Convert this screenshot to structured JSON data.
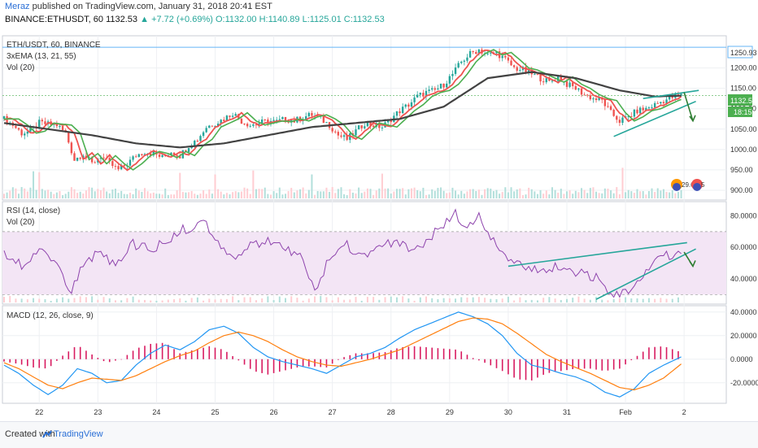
{
  "header": {
    "author": "Meraz",
    "published": "published on TradingView.com, January 31, 2018 20:41 EST",
    "symbol_line": "BINANCE:ETHUSDT, 60",
    "last": "1132.53",
    "change": "+7.72 (+0.69%)",
    "ohlc": "O:1132.00 H:1140.89 L:1125.01 C:1132.53"
  },
  "legends": {
    "symbol": "ETH/USDT, 60, BINANCE",
    "ema": "3xEMA (13, 21, 55)",
    "vol": "Vol (20)",
    "rsi": "RSI (14, close)",
    "rsi_vol": "Vol (20)",
    "macd": "MACD (12, 26, close, 9)"
  },
  "price_tags": {
    "resistance": "1250.93",
    "last": "1132.53",
    "countdown": "18:15"
  },
  "event_badges": [
    "29.6",
    "5"
  ],
  "footer": {
    "created_with": "Created with",
    "brand": "TradingView"
  },
  "colors": {
    "up": "#26a69a",
    "down": "#ef5350",
    "ema13": "#ef5350",
    "ema21": "#4caf50",
    "ema55": "#424242",
    "trend": "#26a69a",
    "arrow": "#2e7d32",
    "resistance": "#64b5f6",
    "rsi_line": "#8e44ad",
    "rsi_band": "#f3e5f5",
    "macd_line": "#2196f3",
    "signal_line": "#ff7f0e",
    "hist": "#d81b60"
  },
  "chart_data": [
    {
      "type": "candlestick",
      "name": "ETH/USDT 60",
      "x_labels": [
        "22",
        "23",
        "24",
        "25",
        "26",
        "27",
        "28",
        "29",
        "30",
        "31",
        "Feb",
        "2"
      ],
      "y_ticks": [
        900,
        950,
        1000,
        1050,
        1100,
        1150,
        1200
      ],
      "y_tick_labels": [
        "900.00",
        "950.00",
        "1000.00",
        "1050.00",
        "1100.00",
        "1150.00",
        "1200.00"
      ],
      "ylim": [
        880,
        1275
      ],
      "resistance_level": 1250.93,
      "close_path": [
        [
          0,
          1075
        ],
        [
          3,
          1060
        ],
        [
          6,
          1040
        ],
        [
          9,
          1045
        ],
        [
          12,
          1065
        ],
        [
          15,
          1062
        ],
        [
          18,
          1060
        ],
        [
          21,
          1040
        ],
        [
          24,
          975
        ],
        [
          27,
          990
        ],
        [
          30,
          965
        ],
        [
          33,
          985
        ],
        [
          36,
          965
        ],
        [
          39,
          950
        ],
        [
          42,
          965
        ],
        [
          45,
          985
        ],
        [
          48,
          995
        ],
        [
          51,
          990
        ],
        [
          54,
          980
        ],
        [
          57,
          995
        ],
        [
          60,
          985
        ],
        [
          63,
          1010
        ],
        [
          66,
          1025
        ],
        [
          69,
          1055
        ],
        [
          72,
          1065
        ],
        [
          75,
          1075
        ],
        [
          78,
          1090
        ],
        [
          81,
          1070
        ],
        [
          84,
          1060
        ],
        [
          87,
          1065
        ],
        [
          90,
          1070
        ],
        [
          93,
          1068
        ],
        [
          96,
          1075
        ],
        [
          99,
          1070
        ],
        [
          102,
          1080
        ],
        [
          105,
          1085
        ],
        [
          108,
          1075
        ],
        [
          111,
          1060
        ],
        [
          114,
          1035
        ],
        [
          117,
          1025
        ],
        [
          120,
          1045
        ],
        [
          123,
          1065
        ],
        [
          126,
          1060
        ],
        [
          129,
          1055
        ],
        [
          132,
          1075
        ],
        [
          135,
          1095
        ],
        [
          138,
          1110
        ],
        [
          141,
          1130
        ],
        [
          144,
          1140
        ],
        [
          147,
          1145
        ],
        [
          150,
          1160
        ],
        [
          153,
          1185
        ],
        [
          156,
          1215
        ],
        [
          159,
          1235
        ],
        [
          162,
          1245
        ],
        [
          165,
          1232
        ],
        [
          168,
          1238
        ],
        [
          171,
          1220
        ],
        [
          174,
          1200
        ],
        [
          177,
          1195
        ],
        [
          180,
          1185
        ],
        [
          183,
          1175
        ],
        [
          186,
          1165
        ],
        [
          189,
          1178
        ],
        [
          192,
          1160
        ],
        [
          195,
          1150
        ],
        [
          198,
          1135
        ],
        [
          201,
          1125
        ],
        [
          204,
          1120
        ],
        [
          207,
          1090
        ],
        [
          210,
          1070
        ],
        [
          213,
          1080
        ],
        [
          216,
          1095
        ],
        [
          219,
          1100
        ],
        [
          222,
          1110
        ],
        [
          225,
          1120
        ],
        [
          228,
          1128
        ],
        [
          231,
          1132.53
        ]
      ],
      "ema55_path": [
        [
          0,
          1065
        ],
        [
          15,
          1050
        ],
        [
          30,
          1035
        ],
        [
          45,
          1015
        ],
        [
          60,
          1005
        ],
        [
          75,
          1015
        ],
        [
          90,
          1035
        ],
        [
          105,
          1055
        ],
        [
          120,
          1065
        ],
        [
          135,
          1075
        ],
        [
          150,
          1105
        ],
        [
          165,
          1175
        ],
        [
          180,
          1190
        ],
        [
          195,
          1175
        ],
        [
          210,
          1145
        ],
        [
          222,
          1130
        ],
        [
          231,
          1132
        ]
      ],
      "trendline_upper": [
        [
          218,
          1125
        ],
        [
          237,
          1145
        ]
      ],
      "trendline_lower": [
        [
          208,
          1032
        ],
        [
          236,
          1118
        ]
      ],
      "projection_arrow": [
        [
          232,
          1140
        ],
        [
          235,
          1070
        ]
      ],
      "volume_note": "Vol (20) bars at bottom of price pane"
    },
    {
      "type": "line",
      "name": "RSI (14, close)",
      "y_ticks": [
        40,
        60,
        80
      ],
      "y_tick_labels": [
        "40.0000",
        "60.0000",
        "80.0000"
      ],
      "ylim": [
        25,
        88
      ],
      "band": [
        30,
        70
      ],
      "x": [
        0,
        6,
        12,
        18,
        22,
        26,
        32,
        38,
        44,
        50,
        56,
        62,
        68,
        74,
        78,
        84,
        90,
        96,
        102,
        106,
        110,
        116,
        122,
        128,
        134,
        140,
        146,
        150,
        154,
        158,
        162,
        165,
        168,
        172,
        178,
        184,
        190,
        196,
        202,
        206,
        210,
        216,
        222,
        228,
        232
      ],
      "values": [
        55,
        48,
        60,
        52,
        30,
        45,
        57,
        50,
        62,
        58,
        65,
        72,
        76,
        62,
        55,
        60,
        64,
        58,
        52,
        30,
        50,
        62,
        56,
        60,
        64,
        58,
        68,
        74,
        82,
        70,
        83,
        68,
        60,
        50,
        48,
        45,
        49,
        44,
        40,
        32,
        28,
        40,
        52,
        56,
        58
      ],
      "trendline_upper": [
        [
          172,
          48
        ],
        [
          233,
          63
        ]
      ],
      "trendline_lower": [
        [
          202,
          27
        ],
        [
          236,
          59
        ]
      ],
      "projection_arrow": [
        [
          232,
          57
        ],
        [
          235,
          48
        ]
      ]
    },
    {
      "type": "line",
      "name": "MACD (12, 26, close, 9)",
      "y_ticks": [
        -20,
        0,
        20,
        40
      ],
      "y_tick_labels": [
        "-20.0000",
        "0.0000",
        "20.0000",
        "40.0000"
      ],
      "ylim": [
        -36,
        44
      ],
      "x": [
        0,
        5,
        10,
        15,
        20,
        25,
        30,
        35,
        40,
        45,
        50,
        55,
        60,
        65,
        70,
        75,
        80,
        85,
        90,
        95,
        100,
        105,
        110,
        115,
        120,
        125,
        130,
        135,
        140,
        145,
        150,
        155,
        160,
        165,
        170,
        175,
        180,
        185,
        190,
        195,
        200,
        205,
        210,
        215,
        220,
        225,
        231
      ],
      "macd": [
        -5,
        -12,
        -22,
        -30,
        -22,
        -8,
        -12,
        -20,
        -18,
        -5,
        5,
        12,
        8,
        15,
        25,
        28,
        22,
        10,
        2,
        -2,
        -5,
        -8,
        -12,
        -5,
        2,
        5,
        10,
        18,
        25,
        30,
        35,
        40,
        36,
        30,
        20,
        5,
        -5,
        -8,
        -12,
        -15,
        -20,
        -28,
        -32,
        -25,
        -12,
        -5,
        2
      ],
      "signal": [
        -3,
        -8,
        -15,
        -22,
        -25,
        -20,
        -16,
        -17,
        -18,
        -14,
        -8,
        -2,
        3,
        7,
        14,
        20,
        23,
        20,
        15,
        8,
        2,
        -2,
        -5,
        -6,
        -3,
        0,
        4,
        8,
        14,
        20,
        26,
        32,
        35,
        34,
        30,
        22,
        13,
        4,
        -2,
        -7,
        -12,
        -18,
        -24,
        -26,
        -22,
        -16,
        -4
      ]
    }
  ]
}
